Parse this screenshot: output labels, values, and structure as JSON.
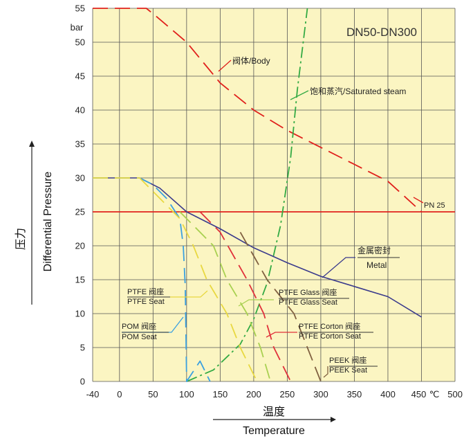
{
  "chart_data": {
    "type": "line",
    "title": "DN50-DN300",
    "xlabel_cn": "温度",
    "xlabel": "Temperature",
    "ylabel_cn": "压力",
    "ylabel": "Differential Pressure",
    "y_unit": "bar",
    "x_unit": "℃",
    "xlim": [
      -40,
      500
    ],
    "ylim": [
      0,
      55
    ],
    "x_ticks": [
      "-40",
      "0",
      "50",
      "100",
      "150",
      "200",
      "250",
      "300",
      "350",
      "400",
      "450",
      "500"
    ],
    "y_ticks": [
      "0",
      "5",
      "10",
      "15",
      "20",
      "25",
      "30",
      "35",
      "40",
      "45",
      "50",
      "55"
    ],
    "grid": true,
    "series": [
      {
        "key": "body",
        "name": "阀体/Body",
        "color": "#e0201c",
        "style": "dash-long",
        "points": [
          [
            -40,
            55
          ],
          [
            40,
            55
          ],
          [
            55,
            53.8
          ],
          [
            100,
            50
          ],
          [
            150,
            44
          ],
          [
            200,
            40
          ],
          [
            250,
            37
          ],
          [
            310,
            34
          ],
          [
            360,
            31.5
          ],
          [
            400,
            29.5
          ],
          [
            450,
            25
          ]
        ]
      },
      {
        "key": "pn25",
        "name": "PN 25",
        "color": "#e0201c",
        "style": "solid",
        "points": [
          [
            -40,
            25
          ],
          [
            500,
            25
          ]
        ]
      },
      {
        "key": "steam",
        "name": "饱和蒸汽/Saturated steam",
        "color": "#33aa44",
        "style": "dash-dot",
        "points": [
          [
            100,
            0
          ],
          [
            140,
            1.7
          ],
          [
            180,
            5.5
          ],
          [
            200,
            9.2
          ],
          [
            220,
            14.5
          ],
          [
            240,
            23
          ],
          [
            255,
            33
          ],
          [
            265,
            43
          ],
          [
            280,
            55
          ]
        ]
      },
      {
        "key": "metal",
        "name": "金属密封/Metal",
        "color": "#3a3a8c",
        "style": "solid",
        "points": [
          [
            -40,
            30
          ],
          [
            30,
            30
          ],
          [
            60,
            28.5
          ],
          [
            100,
            25
          ],
          [
            150,
            22.5
          ],
          [
            200,
            19.7
          ],
          [
            250,
            17.5
          ],
          [
            300,
            15.5
          ],
          [
            350,
            14
          ],
          [
            400,
            12.5
          ],
          [
            450,
            9.5
          ]
        ]
      },
      {
        "key": "pom",
        "name": "POM Seat",
        "color": "#3aa0e0",
        "style": "dash-long",
        "points": [
          [
            -40,
            30
          ],
          [
            30,
            30
          ],
          [
            50,
            29
          ],
          [
            70,
            27
          ],
          [
            90,
            24
          ],
          [
            95,
            20
          ],
          [
            98,
            14
          ],
          [
            100,
            0
          ],
          [
            120,
            3
          ],
          [
            135,
            0
          ]
        ]
      },
      {
        "key": "ptfe",
        "name": "PTFE Seat",
        "color": "#e8d840",
        "style": "dash-long",
        "points": [
          [
            -40,
            30
          ],
          [
            30,
            30
          ],
          [
            60,
            27
          ],
          [
            90,
            24
          ],
          [
            110,
            20
          ],
          [
            130,
            15
          ],
          [
            160,
            10
          ],
          [
            180,
            5
          ],
          [
            205,
            0
          ]
        ]
      },
      {
        "key": "ptfe_glass",
        "name": "PTFE Glass Seat",
        "color": "#a8d050",
        "style": "dash-long",
        "points": [
          [
            90,
            25
          ],
          [
            110,
            23
          ],
          [
            140,
            20
          ],
          [
            160,
            15
          ],
          [
            190,
            10
          ],
          [
            210,
            5
          ],
          [
            225,
            0
          ]
        ]
      },
      {
        "key": "ptfe_corton",
        "name": "PTFE Corton Seat",
        "color": "#e0303a",
        "style": "dash-long",
        "points": [
          [
            120,
            25
          ],
          [
            150,
            22
          ],
          [
            190,
            15
          ],
          [
            215,
            10
          ],
          [
            230,
            5
          ],
          [
            255,
            0
          ]
        ]
      },
      {
        "key": "peek",
        "name": "PEEK Seat",
        "color": "#806040",
        "style": "dash-long",
        "points": [
          [
            180,
            22
          ],
          [
            220,
            15
          ],
          [
            260,
            10
          ],
          [
            280,
            5
          ],
          [
            300,
            0
          ]
        ]
      }
    ],
    "annotations": [
      {
        "text": "阀体/Body",
        "series": "body"
      },
      {
        "text": "饱和蒸汽/Saturated steam",
        "series": "steam"
      },
      {
        "text": "PN 25",
        "series": "pn25"
      },
      {
        "text_cn": "金属密封",
        "text": "Metal",
        "series": "metal"
      },
      {
        "text_cn": "PTFE 阀座",
        "text": "PTFE Seat",
        "series": "ptfe"
      },
      {
        "text_cn": "POM 阀座",
        "text": "POM Seat",
        "series": "pom"
      },
      {
        "text_cn": "PTFE Glass 阀座",
        "text": "PTFE Glass Seat",
        "series": "ptfe_glass"
      },
      {
        "text_cn": "PTFE Corton 阀座",
        "text": "PTFE Corton Seat",
        "series": "ptfe_corton"
      },
      {
        "text_cn": "PEEK 阀座",
        "text": "PEEK Seat",
        "series": "peek"
      }
    ]
  }
}
